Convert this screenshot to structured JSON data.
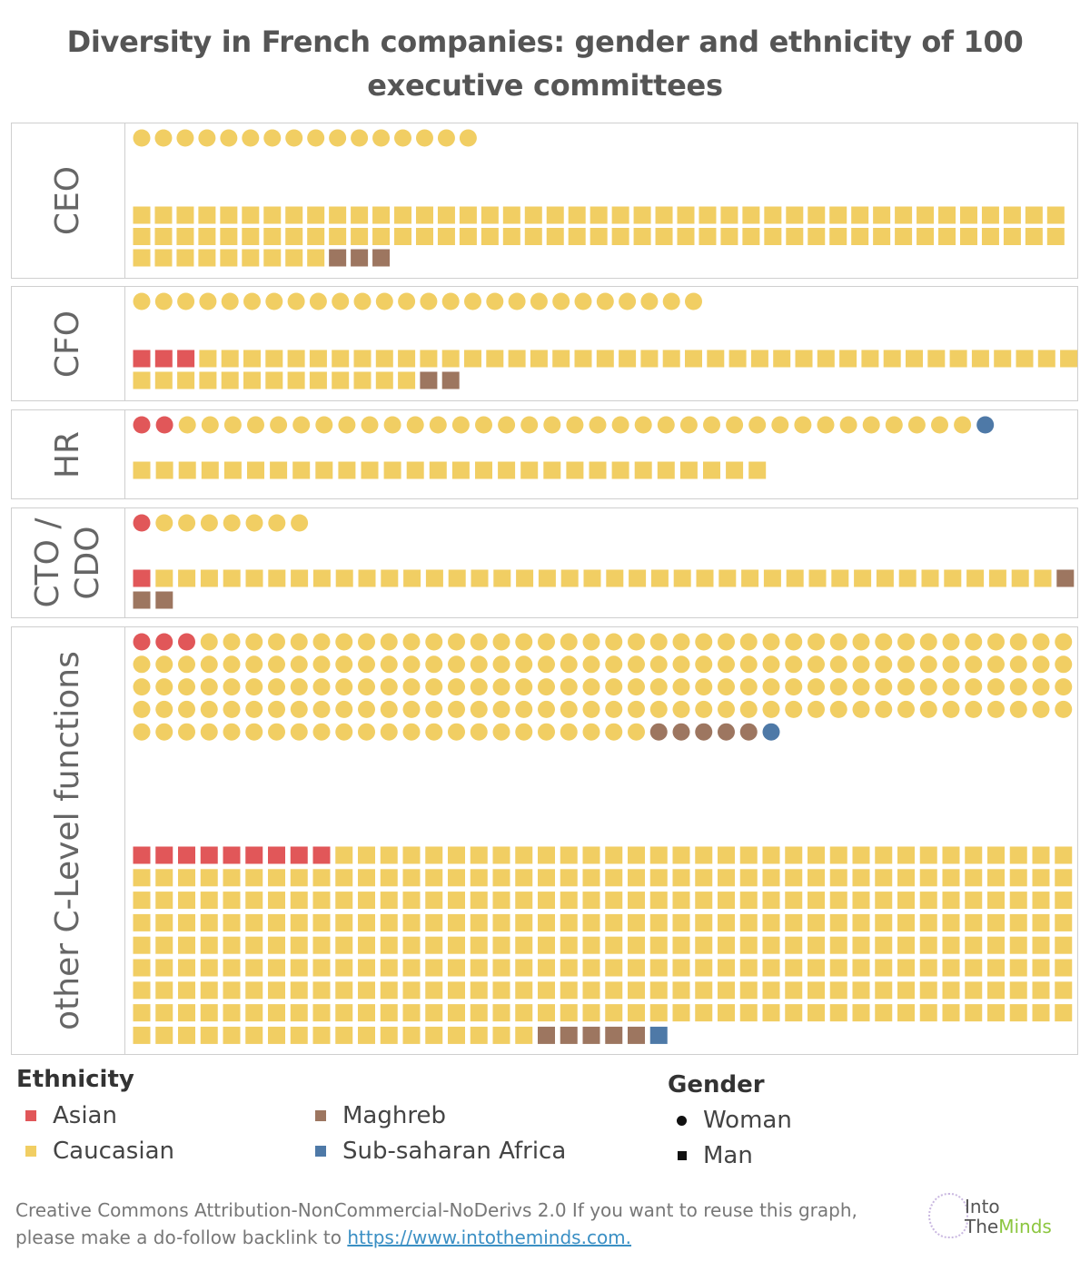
{
  "chart_data": {
    "type": "waffle",
    "title": "Diversity in French companies: gender and ethnicity of 100 executive committees",
    "colors": {
      "Asian": "#e15759",
      "Caucasian": "#f1ce63",
      "Maghreb": "#9d7660",
      "Sub-saharan Africa": "#4e79a7"
    },
    "unit": "one mark = one executive",
    "panels": [
      {
        "name": "CEO",
        "women": {
          "Asian": 0,
          "Caucasian": 16,
          "Maghreb": 0,
          "Sub-saharan Africa": 0
        },
        "men": {
          "Asian": 0,
          "Caucasian": 95,
          "Maghreb": 3,
          "Sub-saharan Africa": 0
        }
      },
      {
        "name": "CFO",
        "women": {
          "Asian": 0,
          "Caucasian": 26,
          "Maghreb": 0,
          "Sub-saharan Africa": 0
        },
        "men": {
          "Asian": 3,
          "Caucasian": 53,
          "Maghreb": 2,
          "Sub-saharan Africa": 0
        }
      },
      {
        "name": "HR",
        "women": {
          "Asian": 2,
          "Caucasian": 35,
          "Maghreb": 0,
          "Sub-saharan Africa": 1
        },
        "men": {
          "Asian": 0,
          "Caucasian": 28,
          "Maghreb": 0,
          "Sub-saharan Africa": 0
        }
      },
      {
        "name": "CTO / CDO",
        "women": {
          "Asian": 1,
          "Caucasian": 7,
          "Maghreb": 0,
          "Sub-saharan Africa": 0
        },
        "men": {
          "Asian": 1,
          "Caucasian": 40,
          "Maghreb": 3,
          "Sub-saharan Africa": 0
        }
      },
      {
        "name": "other C-Level functions",
        "women": {
          "Asian": 3,
          "Caucasian": 188,
          "Maghreb": 5,
          "Sub-saharan Africa": 1
        },
        "men": {
          "Asian": 9,
          "Caucasian": 345,
          "Maghreb": 5,
          "Sub-saharan Africa": 1
        }
      }
    ],
    "legend": {
      "ethnicity_title": "Ethnicity",
      "ethnicity": [
        "Asian",
        "Caucasian",
        "Maghreb",
        "Sub-saharan Africa"
      ],
      "gender_title": "Gender",
      "gender": [
        {
          "label": "Woman",
          "shape": "circle"
        },
        {
          "label": "Man",
          "shape": "square"
        }
      ]
    }
  },
  "panel_labels": {
    "ceo": "CEO",
    "cfo": "CFO",
    "hr": "HR",
    "cto_line1": "CTO /",
    "cto_line2": "CDO",
    "other": "other C-Level functions"
  },
  "footer": {
    "text_line1": "Creative Commons Attribution-NonCommercial-NoDerivs 2.0 If you want to reuse this graph,",
    "text_line2": "please make a do-follow backlink to ",
    "link": "https://www.intotheminds.com."
  },
  "logo": {
    "line1": "Into",
    "line2a": "The",
    "line2b": "Minds"
  }
}
